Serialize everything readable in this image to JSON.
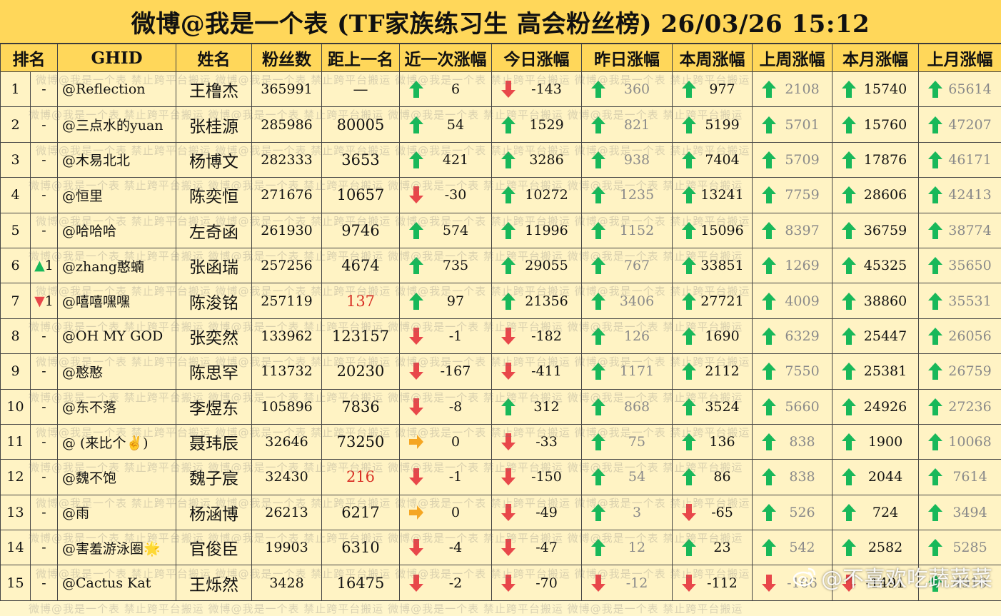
{
  "title": "微博@我是一个表 (TF家族练习生 高会粉丝榜)  26/03/26 15:12",
  "headers": [
    "排名",
    "GHID",
    "姓名",
    "粉丝数",
    "距上一名",
    "近一次涨幅",
    "今日涨幅",
    "昨日涨幅",
    "本周涨幅",
    "上周涨幅",
    "本月涨幅",
    "上月涨幅"
  ],
  "watermark": "微博@我是一个表    禁止跨平台搬运",
  "credit": "@不喜欢吃蔬菜菜",
  "colors": {
    "header_bg": "#ffd75a",
    "row_bg": "#fff3c4",
    "up": "#18b85a",
    "down": "#e8474a",
    "flat": "#f5a623",
    "highlight": "#d93025"
  },
  "rows": [
    {
      "rank": "1",
      "rchg": "-",
      "rdir": "",
      "ghid": "@Reflection",
      "name": "王橹杰",
      "fans": "365991",
      "gap": "—",
      "gapRed": false,
      "last": {
        "d": "up",
        "v": "6"
      },
      "today": {
        "d": "down",
        "v": "-143"
      },
      "yest": {
        "d": "up",
        "v": "360"
      },
      "week": {
        "d": "up",
        "v": "977"
      },
      "lweek": {
        "d": "up",
        "v": "2108"
      },
      "month": {
        "d": "up",
        "v": "15740"
      },
      "lmonth": {
        "d": "up",
        "v": "65614"
      }
    },
    {
      "rank": "2",
      "rchg": "-",
      "rdir": "",
      "ghid": "@三点水的yuan",
      "name": "张桂源",
      "fans": "285986",
      "gap": "80005",
      "gapRed": false,
      "last": {
        "d": "up",
        "v": "54"
      },
      "today": {
        "d": "up",
        "v": "1529"
      },
      "yest": {
        "d": "up",
        "v": "821"
      },
      "week": {
        "d": "up",
        "v": "5199"
      },
      "lweek": {
        "d": "up",
        "v": "5701"
      },
      "month": {
        "d": "up",
        "v": "15760"
      },
      "lmonth": {
        "d": "up",
        "v": "47207"
      }
    },
    {
      "rank": "3",
      "rchg": "-",
      "rdir": "",
      "ghid": "@木易北北",
      "name": "杨博文",
      "fans": "282333",
      "gap": "3653",
      "gapRed": false,
      "last": {
        "d": "up",
        "v": "421"
      },
      "today": {
        "d": "up",
        "v": "3286"
      },
      "yest": {
        "d": "up",
        "v": "938"
      },
      "week": {
        "d": "up",
        "v": "7404"
      },
      "lweek": {
        "d": "up",
        "v": "5709"
      },
      "month": {
        "d": "up",
        "v": "17876"
      },
      "lmonth": {
        "d": "up",
        "v": "46171"
      }
    },
    {
      "rank": "4",
      "rchg": "-",
      "rdir": "",
      "ghid": "@恒里",
      "name": "陈奕恒",
      "fans": "271676",
      "gap": "10657",
      "gapRed": false,
      "last": {
        "d": "down",
        "v": "-30"
      },
      "today": {
        "d": "up",
        "v": "10272"
      },
      "yest": {
        "d": "up",
        "v": "1235"
      },
      "week": {
        "d": "up",
        "v": "13241"
      },
      "lweek": {
        "d": "up",
        "v": "7759"
      },
      "month": {
        "d": "up",
        "v": "28606"
      },
      "lmonth": {
        "d": "up",
        "v": "42413"
      }
    },
    {
      "rank": "5",
      "rchg": "-",
      "rdir": "",
      "ghid": "@哈哈哈",
      "name": "左奇函",
      "fans": "261930",
      "gap": "9746",
      "gapRed": false,
      "last": {
        "d": "up",
        "v": "574"
      },
      "today": {
        "d": "up",
        "v": "11996"
      },
      "yest": {
        "d": "up",
        "v": "1152"
      },
      "week": {
        "d": "up",
        "v": "15096"
      },
      "lweek": {
        "d": "up",
        "v": "8397"
      },
      "month": {
        "d": "up",
        "v": "36759"
      },
      "lmonth": {
        "d": "up",
        "v": "38774"
      }
    },
    {
      "rank": "6",
      "rchg": "1",
      "rdir": "up",
      "ghid": "@zhang憨蝻",
      "name": "张函瑞",
      "fans": "257256",
      "gap": "4674",
      "gapRed": false,
      "last": {
        "d": "up",
        "v": "735"
      },
      "today": {
        "d": "up",
        "v": "29055"
      },
      "yest": {
        "d": "up",
        "v": "767"
      },
      "week": {
        "d": "up",
        "v": "33851"
      },
      "lweek": {
        "d": "up",
        "v": "1269"
      },
      "month": {
        "d": "up",
        "v": "45325"
      },
      "lmonth": {
        "d": "up",
        "v": "35650"
      }
    },
    {
      "rank": "7",
      "rchg": "1",
      "rdir": "down",
      "ghid": "@嘻嘻嘿嘿",
      "name": "陈浚铭",
      "fans": "257119",
      "gap": "137",
      "gapRed": true,
      "last": {
        "d": "up",
        "v": "97"
      },
      "today": {
        "d": "up",
        "v": "21356"
      },
      "yest": {
        "d": "up",
        "v": "3406"
      },
      "week": {
        "d": "up",
        "v": "27721"
      },
      "lweek": {
        "d": "up",
        "v": "4009"
      },
      "month": {
        "d": "up",
        "v": "38860"
      },
      "lmonth": {
        "d": "up",
        "v": "35531"
      }
    },
    {
      "rank": "8",
      "rchg": "-",
      "rdir": "",
      "ghid": "@OH MY GOD",
      "name": "张奕然",
      "fans": "133962",
      "gap": "123157",
      "gapRed": false,
      "last": {
        "d": "down",
        "v": "-1"
      },
      "today": {
        "d": "down",
        "v": "-182"
      },
      "yest": {
        "d": "up",
        "v": "126"
      },
      "week": {
        "d": "up",
        "v": "1690"
      },
      "lweek": {
        "d": "up",
        "v": "6329"
      },
      "month": {
        "d": "up",
        "v": "25447"
      },
      "lmonth": {
        "d": "up",
        "v": "26056"
      }
    },
    {
      "rank": "9",
      "rchg": "-",
      "rdir": "",
      "ghid": "@憨憨",
      "name": "陈思罕",
      "fans": "113732",
      "gap": "20230",
      "gapRed": false,
      "last": {
        "d": "down",
        "v": "-167"
      },
      "today": {
        "d": "down",
        "v": "-411"
      },
      "yest": {
        "d": "up",
        "v": "1171"
      },
      "week": {
        "d": "up",
        "v": "2112"
      },
      "lweek": {
        "d": "up",
        "v": "7550"
      },
      "month": {
        "d": "up",
        "v": "25381"
      },
      "lmonth": {
        "d": "up",
        "v": "26759"
      }
    },
    {
      "rank": "10",
      "rchg": "-",
      "rdir": "",
      "ghid": "@东不落",
      "name": "李煜东",
      "fans": "105896",
      "gap": "7836",
      "gapRed": false,
      "last": {
        "d": "down",
        "v": "-8"
      },
      "today": {
        "d": "up",
        "v": "312"
      },
      "yest": {
        "d": "up",
        "v": "868"
      },
      "week": {
        "d": "up",
        "v": "3524"
      },
      "lweek": {
        "d": "up",
        "v": "5660"
      },
      "month": {
        "d": "up",
        "v": "24926"
      },
      "lmonth": {
        "d": "up",
        "v": "27236"
      }
    },
    {
      "rank": "11",
      "rchg": "-",
      "rdir": "",
      "ghid": "@ (来比个✌)",
      "name": "聂玮辰",
      "fans": "32646",
      "gap": "73250",
      "gapRed": false,
      "last": {
        "d": "flat",
        "v": "0"
      },
      "today": {
        "d": "down",
        "v": "-33"
      },
      "yest": {
        "d": "up",
        "v": "75"
      },
      "week": {
        "d": "up",
        "v": "136"
      },
      "lweek": {
        "d": "up",
        "v": "838"
      },
      "month": {
        "d": "up",
        "v": "1900"
      },
      "lmonth": {
        "d": "up",
        "v": "10068"
      }
    },
    {
      "rank": "12",
      "rchg": "-",
      "rdir": "",
      "ghid": "@魏不饱",
      "name": "魏子宸",
      "fans": "32430",
      "gap": "216",
      "gapRed": true,
      "last": {
        "d": "down",
        "v": "-1"
      },
      "today": {
        "d": "down",
        "v": "-150"
      },
      "yest": {
        "d": "up",
        "v": "54"
      },
      "week": {
        "d": "up",
        "v": "86"
      },
      "lweek": {
        "d": "up",
        "v": "838"
      },
      "month": {
        "d": "up",
        "v": "2044"
      },
      "lmonth": {
        "d": "up",
        "v": "7614"
      }
    },
    {
      "rank": "13",
      "rchg": "-",
      "rdir": "",
      "ghid": "@雨",
      "name": "杨涵博",
      "fans": "26213",
      "gap": "6217",
      "gapRed": false,
      "last": {
        "d": "flat",
        "v": "0"
      },
      "today": {
        "d": "down",
        "v": "-49"
      },
      "yest": {
        "d": "up",
        "v": "3"
      },
      "week": {
        "d": "down",
        "v": "-65"
      },
      "lweek": {
        "d": "up",
        "v": "526"
      },
      "month": {
        "d": "up",
        "v": "724"
      },
      "lmonth": {
        "d": "up",
        "v": "3494"
      }
    },
    {
      "rank": "14",
      "rchg": "-",
      "rdir": "",
      "ghid": "@害羞游泳圈🌟",
      "name": "官俊臣",
      "fans": "19903",
      "gap": "6310",
      "gapRed": false,
      "last": {
        "d": "down",
        "v": "-4"
      },
      "today": {
        "d": "down",
        "v": "-47"
      },
      "yest": {
        "d": "up",
        "v": "12"
      },
      "week": {
        "d": "up",
        "v": "23"
      },
      "lweek": {
        "d": "up",
        "v": "542"
      },
      "month": {
        "d": "up",
        "v": "2582"
      },
      "lmonth": {
        "d": "up",
        "v": "5285"
      }
    },
    {
      "rank": "15",
      "rchg": "-",
      "rdir": "",
      "ghid": "@Cactus Kat",
      "name": "王烁然",
      "fans": "3428",
      "gap": "16475",
      "gapRed": false,
      "last": {
        "d": "down",
        "v": "-2"
      },
      "today": {
        "d": "down",
        "v": "-70"
      },
      "yest": {
        "d": "down",
        "v": "-12"
      },
      "week": {
        "d": "down",
        "v": "-112"
      },
      "lweek": {
        "d": "down",
        "v": "-166"
      },
      "month": {
        "d": "down",
        "v": "-1491"
      },
      "lmonth": {
        "d": "up",
        "v": "4910"
      }
    }
  ]
}
